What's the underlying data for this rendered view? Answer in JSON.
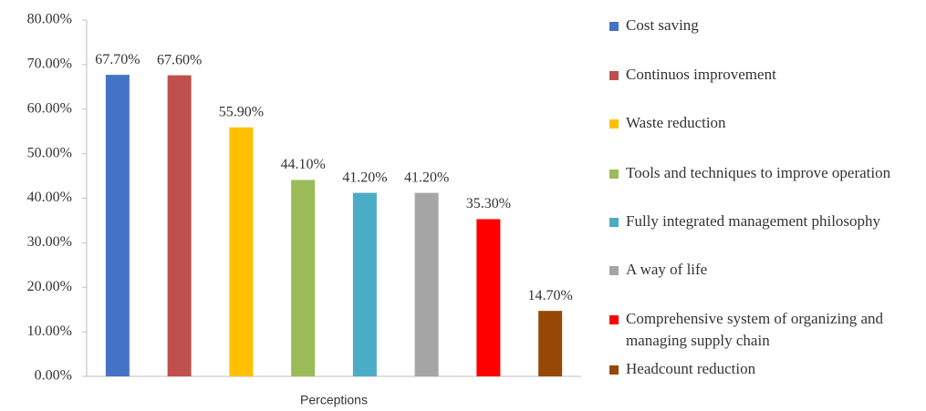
{
  "chart_data": {
    "type": "bar",
    "x_label": "Perceptions",
    "categories": [
      null
    ],
    "series": [
      {
        "name": "Cost saving",
        "color": "#4472c4",
        "values": [
          67.7
        ],
        "value_labels": [
          "67.70%"
        ]
      },
      {
        "name": "Continuos improvement",
        "color": "#c0504d",
        "values": [
          67.6
        ],
        "value_labels": [
          "67.60%"
        ]
      },
      {
        "name": "Waste reduction",
        "color": "#ffc000",
        "values": [
          55.9
        ],
        "value_labels": [
          "55.90%"
        ]
      },
      {
        "name": "Tools and techniques to improve operation",
        "color": "#9bbb59",
        "values": [
          44.1
        ],
        "value_labels": [
          "44.10%"
        ]
      },
      {
        "name": "Fully integrated management philosophy",
        "color": "#4bacc6",
        "values": [
          41.2
        ],
        "value_labels": [
          "41.20%"
        ]
      },
      {
        "name": "A way of life",
        "color": "#a5a5a5",
        "values": [
          41.2
        ],
        "value_labels": [
          "41.20%"
        ]
      },
      {
        "name": "Comprehensive system of organizing and managing supply chain",
        "color": "#ff0000",
        "values": [
          35.3
        ],
        "value_labels": [
          "35.30%"
        ]
      },
      {
        "name": "Headcount reduction",
        "color": "#974706",
        "values": [
          14.7
        ],
        "value_labels": [
          "14.70%"
        ]
      }
    ],
    "ylim": [
      0,
      80
    ],
    "yticks": [
      {
        "value": 0,
        "label": "0.00%"
      },
      {
        "value": 10,
        "label": "10.00%"
      },
      {
        "value": 20,
        "label": "20.00%"
      },
      {
        "value": 30,
        "label": "30.00%"
      },
      {
        "value": 40,
        "label": "40.00%"
      },
      {
        "value": 50,
        "label": "50.00%"
      },
      {
        "value": 60,
        "label": "60.00%"
      },
      {
        "value": 70,
        "label": "70.00%"
      },
      {
        "value": 80,
        "label": "80.00%"
      }
    ],
    "legend": "right"
  }
}
